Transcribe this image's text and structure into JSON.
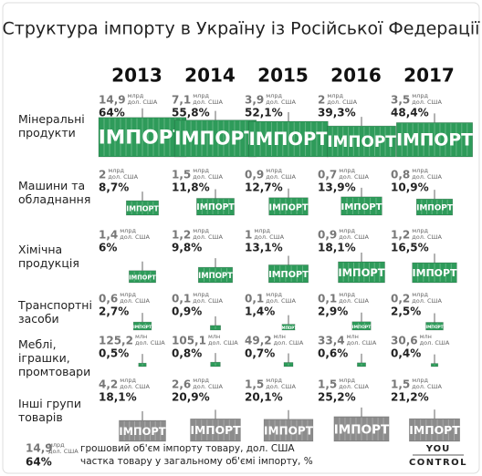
{
  "chart_data": {
    "type": "containers",
    "title": "Структура імпорту в Україну із Російської Федерації",
    "categories": [
      "2013",
      "2014",
      "2015",
      "2016",
      "2017"
    ],
    "container_label": "ІМПОРТ",
    "currency": "дол. США",
    "series": [
      {
        "name": "Мінеральні продукти",
        "color": "#2e9b5a",
        "unit": "млрд",
        "values": [
          14.9,
          7.1,
          3.9,
          2,
          3.5
        ],
        "value_labels": [
          "14,9",
          "7,1",
          "3,9",
          "2",
          "3,5"
        ],
        "shares": [
          64,
          55.8,
          52.1,
          39.3,
          48.4
        ],
        "share_labels": [
          "64%",
          "55,8%",
          "52,1%",
          "39,3%",
          "48,4%"
        ]
      },
      {
        "name": "Машини та обладнання",
        "color": "#2e9b5a",
        "unit": "млрд",
        "values": [
          2,
          1.5,
          0.9,
          0.7,
          0.8
        ],
        "value_labels": [
          "2",
          "1,5",
          "0,9",
          "0,7",
          "0,8"
        ],
        "shares": [
          8.7,
          11.8,
          12.7,
          13.9,
          10.9
        ],
        "share_labels": [
          "8,7%",
          "11,8%",
          "12,7%",
          "13,9%",
          "10,9%"
        ]
      },
      {
        "name": "Хімічна продукція",
        "color": "#2e9b5a",
        "unit": "млрд",
        "values": [
          1.4,
          1.2,
          1,
          0.9,
          1.2
        ],
        "value_labels": [
          "1,4",
          "1,2",
          "1",
          "0,9",
          "1,2"
        ],
        "shares": [
          6,
          9.8,
          13.1,
          18.1,
          16.5
        ],
        "share_labels": [
          "6%",
          "9,8%",
          "13,1%",
          "18,1%",
          "16,5%"
        ]
      },
      {
        "name": "Транспортні засоби",
        "color": "#2e9b5a",
        "unit": "млрд",
        "values": [
          0.6,
          0.1,
          0.1,
          0.1,
          0.2
        ],
        "value_labels": [
          "0,6",
          "0,1",
          "0,1",
          "0,1",
          "0,2"
        ],
        "shares": [
          2.7,
          0.9,
          1.4,
          2.9,
          2.5
        ],
        "share_labels": [
          "2,7%",
          "0,9%",
          "1,4%",
          "2,9%",
          "2,5%"
        ]
      },
      {
        "name": "Меблі, іграшки, промтовари",
        "color": "#2e9b5a",
        "unit": "млн",
        "values": [
          125.2,
          105.1,
          49.2,
          33.4,
          30.6
        ],
        "value_labels": [
          "125,2",
          "105,1",
          "49,2",
          "33,4",
          "30,6"
        ],
        "shares": [
          0.5,
          0.8,
          0.7,
          0.6,
          0.4
        ],
        "share_labels": [
          "0,5%",
          "0,8%",
          "0,7%",
          "0,6%",
          "0,4%"
        ]
      },
      {
        "name": "Інші групи товарів",
        "color": "#8c8c8c",
        "unit": "млрд",
        "values": [
          4.2,
          2.6,
          1.5,
          1.5,
          1.5
        ],
        "value_labels": [
          "4,2",
          "2,6",
          "1,5",
          "1,5",
          "1,5"
        ],
        "shares": [
          18.1,
          20.9,
          20.1,
          25.2,
          21.2
        ],
        "share_labels": [
          "18,1%",
          "20,9%",
          "20,1%",
          "25,2%",
          "21,2%"
        ]
      }
    ],
    "legend_value_text": "грошовий об'єм імпорту  товару, дол. США",
    "legend_share_text": "частка товару у загальному об'ємі імпорту, %",
    "logo_top": "YOU",
    "logo_bottom": "CONTROL"
  }
}
